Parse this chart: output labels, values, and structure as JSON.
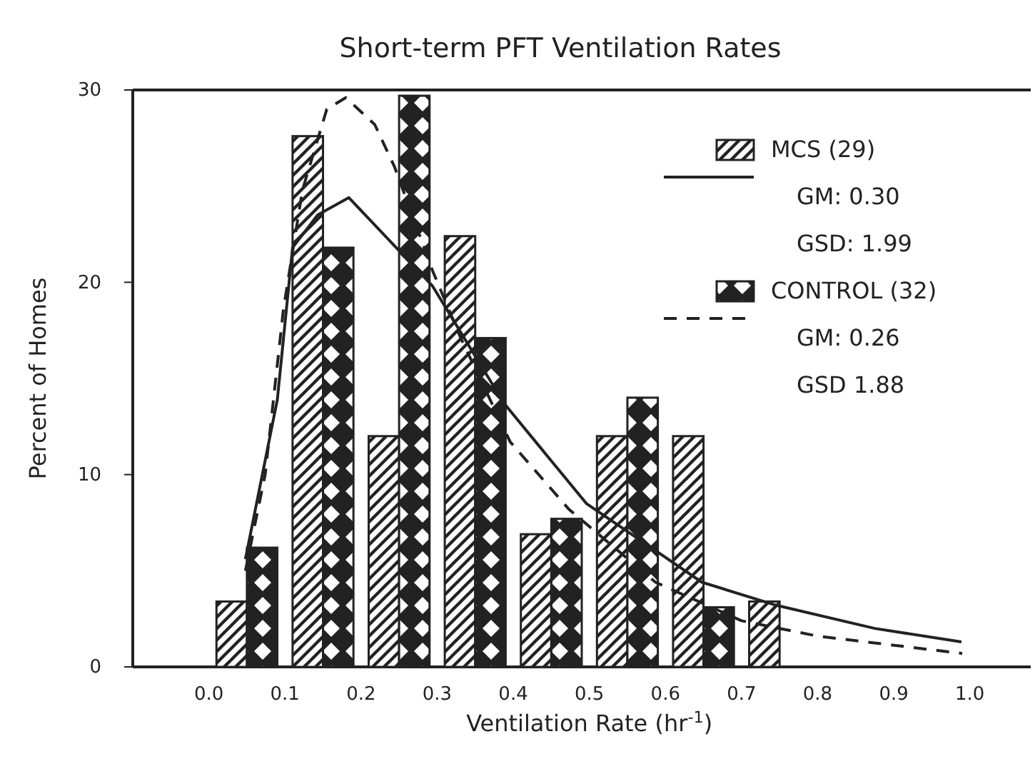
{
  "chart_data": {
    "type": "bar",
    "title": "Short-term PFT Ventilation Rates",
    "xlabel": "Ventilation Rate (hr$^{-1}$)",
    "ylabel": "Percent of Homes",
    "xlim": [
      -0.1,
      1.08
    ],
    "xticks": [
      {
        "value": 0,
        "label": "0.0"
      },
      0.1,
      0.2,
      0.3,
      0.4,
      0.5,
      0.6,
      0.7,
      0.8,
      0.9,
      {
        "value": 1,
        "label": "1.0"
      }
    ],
    "ylim": [
      0,
      30
    ],
    "yticks": [
      0,
      10,
      20,
      30
    ],
    "grid": false,
    "legend": "top right",
    "series": [
      {
        "name": "MCS (29)",
        "color": "#222222",
        "x": [
          0.05,
          0.15,
          0.25,
          0.35,
          0.45,
          0.55,
          0.65,
          0.75
        ],
        "values": [
          3.4,
          27.6,
          12.0,
          22.4,
          6.9,
          12.0,
          12.0,
          3.4
        ]
      },
      {
        "name": "CONTROL (32)",
        "color": "#222222",
        "x": [
          0.05,
          0.15,
          0.25,
          0.35,
          0.45,
          0.55,
          0.65
        ],
        "values": [
          6.2,
          21.8,
          29.7,
          17.1,
          7.7,
          14.0,
          3.1
        ]
      },
      {
        "type": "line",
        "color": "#222222",
        "line_style": "solid",
        "x": [
          0.048,
          0.09,
          0.11,
          0.143,
          0.184,
          0.294,
          0.388,
          0.496,
          0.648,
          0.746,
          0.875,
          0.989
        ],
        "values": [
          5.6,
          13.9,
          21.8,
          23.5,
          24.4,
          19.8,
          13.7,
          8.5,
          4.4,
          3.2,
          2.0,
          1.3
        ]
      },
      {
        "type": "line",
        "color": "#222222",
        "line_style": "dashed",
        "x": [
          0.048,
          0.074,
          0.098,
          0.123,
          0.155,
          0.18,
          0.218,
          0.244,
          0.294,
          0.331,
          0.396,
          0.473,
          0.587,
          0.7,
          0.8,
          0.99
        ],
        "values": [
          5.0,
          10,
          18.6,
          24.8,
          29.0,
          29.6,
          28.2,
          26.0,
          20.6,
          17.1,
          11.7,
          8.2,
          4.4,
          2.4,
          1.6,
          0.7
        ]
      }
    ],
    "annotations": [
      "GM: 0.30",
      "GSD: 1.99",
      "GM: 0.26",
      "GSD 1.88"
    ]
  }
}
